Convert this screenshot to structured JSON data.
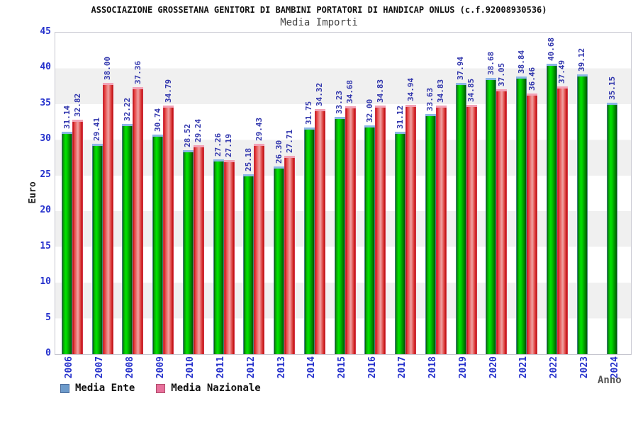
{
  "chart_data": {
    "type": "bar",
    "title": "ASSOCIAZIONE GROSSETANA GENITORI DI BAMBINI PORTATORI DI HANDICAP ONLUS (c.f.92008930536)",
    "subtitle": "Media Importi",
    "xlabel": "Anno",
    "ylabel": "Euro",
    "ylim": [
      0,
      45
    ],
    "ytick_step": 5,
    "yticks": [
      0,
      5,
      10,
      15,
      20,
      25,
      30,
      35,
      40,
      45
    ],
    "grid": "alternating horizontal bands white/#f0f0f0 every 5 units, no vertical gridlines",
    "legend_position": "bottom-left",
    "value_labels": "rotated 90deg above each bar, 2 decimals",
    "categories": [
      "2006",
      "2007",
      "2008",
      "2009",
      "2010",
      "2011",
      "2012",
      "2013",
      "2014",
      "2015",
      "2016",
      "2017",
      "2018",
      "2019",
      "2020",
      "2021",
      "2022",
      "2023",
      "2024"
    ],
    "series": [
      {
        "name": "Media Ente",
        "swatch_color": "#6d9bcb",
        "bar_style": "green gradient cylinder with light-blue top cap",
        "values": [
          31.14,
          29.41,
          32.22,
          30.74,
          28.52,
          27.26,
          25.18,
          26.3,
          31.75,
          33.23,
          32.0,
          31.12,
          33.63,
          37.94,
          38.68,
          38.84,
          40.68,
          39.12,
          35.15
        ]
      },
      {
        "name": "Media Nazionale",
        "swatch_color": "#e8719c",
        "bar_style": "red gradient cylinder with pink top cap",
        "values": [
          32.82,
          38.0,
          37.36,
          34.79,
          29.24,
          27.19,
          29.43,
          27.71,
          34.32,
          34.68,
          34.83,
          34.94,
          34.83,
          34.85,
          37.05,
          36.46,
          37.49,
          null,
          null
        ]
      }
    ]
  },
  "colors": {
    "axis_tick_text": "#2531cc",
    "value_label_text": "#3237ad",
    "plot_border": "#c6c6cf",
    "band_gray": "#f0f0f0",
    "title_text": "#111111",
    "subtitle_text": "#444444",
    "xlabel_text": "#555555"
  }
}
